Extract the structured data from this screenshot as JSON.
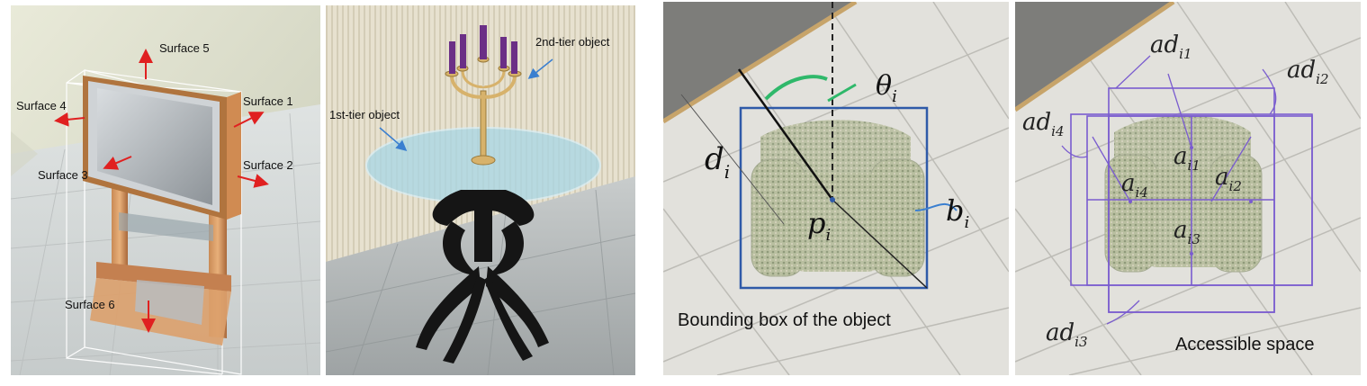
{
  "panel1": {
    "surfaces": [
      "Surface 1",
      "Surface 2",
      "Surface 3",
      "Surface 4",
      "Surface 5",
      "Surface 6"
    ]
  },
  "panel2": {
    "first_tier": "1st-tier object",
    "second_tier": "2nd-tier object"
  },
  "panel3": {
    "d_base": "d",
    "d_sub": "i",
    "theta_base": "θ",
    "theta_sub": "i",
    "p_base": "p",
    "p_sub": "i",
    "b_base": "b",
    "b_sub": "i",
    "caption": "Bounding box of the object"
  },
  "panel4": {
    "ad1_base": "ad",
    "ad1_sub": "i1",
    "ad2_base": "ad",
    "ad2_sub": "i2",
    "ad3_base": "ad",
    "ad3_sub": "i3",
    "ad4_base": "ad",
    "ad4_sub": "i4",
    "a1_base": "a",
    "a1_sub": "i1",
    "a2_base": "a",
    "a2_sub": "i2",
    "a3_base": "a",
    "a3_sub": "i3",
    "a4_base": "a",
    "a4_sub": "i4",
    "caption": "Accessible space"
  },
  "colors": {
    "arrow": "#e02020",
    "tier_arrow": "#3a7fd0",
    "bbox": "#2f5aa8",
    "access": "#7a5ccf",
    "theta_arc": "#2fb86a"
  }
}
